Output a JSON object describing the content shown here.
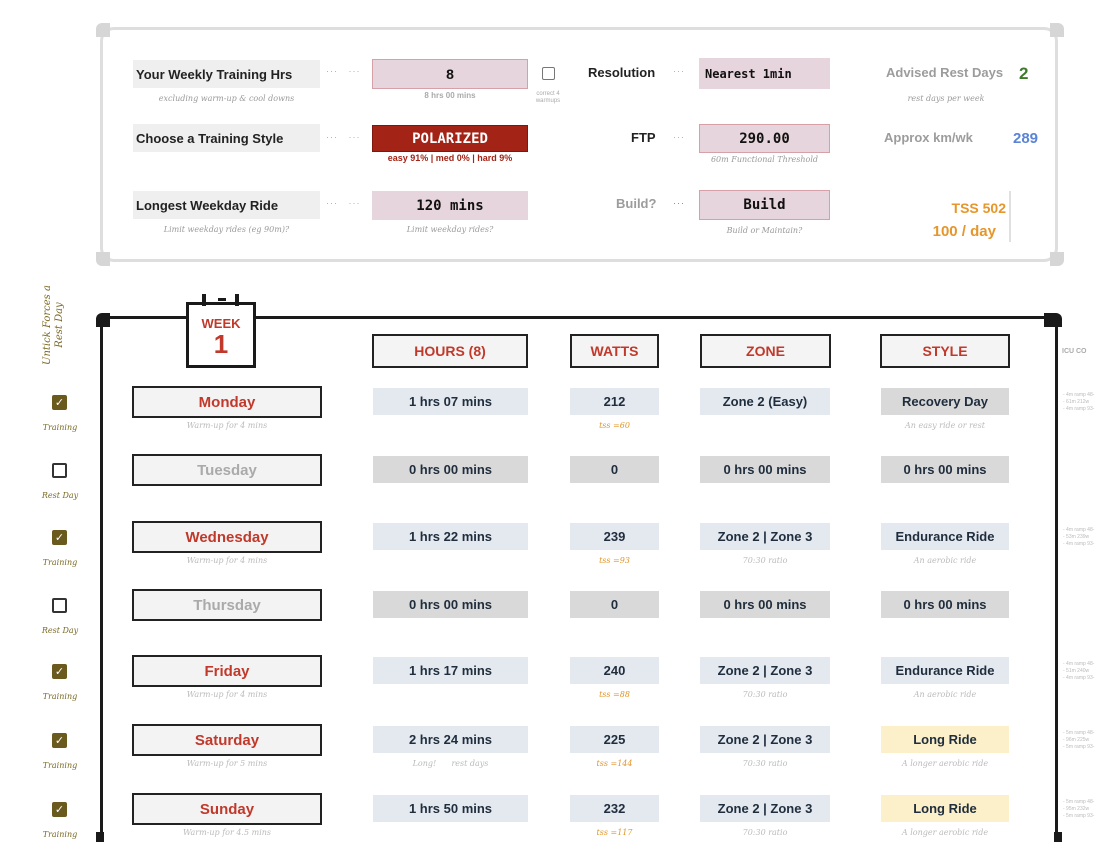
{
  "settings": {
    "weekly_hours_label": "Your Weekly Training Hrs",
    "weekly_hours_sub": "excluding warm-up & cool downs",
    "weekly_hours_value": "8",
    "weekly_hours_caption": "8 hrs 00 mins",
    "warmups_label": "correct 4 warmups",
    "training_style_label": "Choose a Training Style",
    "training_style_value": "POLARIZED",
    "training_style_caption": "easy 91% | med 0% | hard 9%",
    "longest_ride_label": "Longest Weekday Ride",
    "longest_ride_sub": "Limit weekday rides (eg 90m)?",
    "longest_ride_value": "120 mins",
    "longest_ride_caption": "Limit weekday rides?",
    "resolution_label": "Resolution",
    "resolution_value": "Nearest 1min",
    "ftp_label": "FTP",
    "ftp_value": "290.00",
    "ftp_caption": "60m Functional Threshold",
    "build_label": "Build?",
    "build_value": "Build",
    "build_caption": "Build or Maintain?",
    "rest_days_label": "Advised Rest Days",
    "rest_days_value": "2",
    "rest_days_caption": "rest days per week",
    "km_label": "Approx km/wk",
    "km_value": "289",
    "tss_value": "TSS 502",
    "tss_per_day": "100 / day"
  },
  "side_label": "Untick Forces a Rest Day",
  "week": {
    "word": "WEEK",
    "number": "1",
    "headers": {
      "hours": "HOURS (8)",
      "watts": "WATTS",
      "zone": "ZONE",
      "style": "STYLE",
      "icu": "ICU CO"
    }
  },
  "days": [
    {
      "name": "Monday",
      "checked": true,
      "check_label": "Training",
      "warmup": "Warm-up for 4 mins",
      "hours": "1 hrs 07 mins",
      "hours_note": "",
      "watts": "212",
      "tss": "tss =60",
      "zone": "Zone 2 (Easy)",
      "zone_note": "",
      "style": "Recovery Day",
      "style_note": "An easy ride or rest",
      "icu": [
        "- 4m ramp 48-",
        "- 61m 212w",
        "- 4m ramp 93-"
      ]
    },
    {
      "name": "Tuesday",
      "checked": false,
      "check_label": "Rest Day",
      "warmup": "",
      "hours": "0 hrs 00 mins",
      "hours_note": "",
      "watts": "0",
      "tss": "",
      "zone": "0 hrs 00 mins",
      "zone_note": "",
      "style": "0 hrs 00 mins",
      "style_note": "",
      "icu": []
    },
    {
      "name": "Wednesday",
      "checked": true,
      "check_label": "Training",
      "warmup": "Warm-up for 4 mins",
      "hours": "1 hrs 22 mins",
      "hours_note": "",
      "watts": "239",
      "tss": "tss =93",
      "zone": "Zone 2 | Zone 3",
      "zone_note": "70:30 ratio",
      "style": "Endurance Ride",
      "style_note": "An aerobic ride",
      "icu": [
        "- 4m ramp 48-",
        "- 53m 239w",
        "- 4m ramp 93-"
      ]
    },
    {
      "name": "Thursday",
      "checked": false,
      "check_label": "Rest Day",
      "warmup": "",
      "hours": "0 hrs 00 mins",
      "hours_note": "",
      "watts": "0",
      "tss": "",
      "zone": "0 hrs 00 mins",
      "zone_note": "",
      "style": "0 hrs 00 mins",
      "style_note": "",
      "icu": []
    },
    {
      "name": "Friday",
      "checked": true,
      "check_label": "Training",
      "warmup": "Warm-up for 4 mins",
      "hours": "1 hrs 17 mins",
      "hours_note": "",
      "watts": "240",
      "tss": "tss =88",
      "zone": "Zone 2 | Zone 3",
      "zone_note": "70:30 ratio",
      "style": "Endurance Ride",
      "style_note": "An aerobic ride",
      "icu": [
        "- 4m ramp 48-",
        "- 51m 240w",
        "- 4m ramp 93-"
      ]
    },
    {
      "name": "Saturday",
      "checked": true,
      "check_label": "Training",
      "warmup": "Warm-up for 5 mins",
      "hours": "2 hrs 24 mins",
      "hours_note": "Long!      rest days",
      "watts": "225",
      "tss": "tss =144",
      "zone": "Zone 2 | Zone 3",
      "zone_note": "70:30 ratio",
      "style": "Long Ride",
      "style_note": "A longer aerobic ride",
      "icu": [
        "- 5m ramp 48-",
        "- 96m 225w",
        "- 5m ramp 93-"
      ]
    },
    {
      "name": "Sunday",
      "checked": true,
      "check_label": "Training",
      "warmup": "Warm-up for 4.5 mins",
      "hours": "1 hrs 50 mins",
      "hours_note": "",
      "watts": "232",
      "tss": "tss =117",
      "zone": "Zone 2 | Zone 3",
      "zone_note": "70:30 ratio",
      "style": "Long Ride",
      "style_note": "A longer aerobic ride",
      "icu": [
        "- 5m ramp 48-",
        "- 95m 232w",
        "- 5m ramp 93-"
      ]
    }
  ],
  "colors": {
    "accent_red": "#c0392b",
    "dark_red": "#a32416",
    "pink": "#e6d5dc",
    "blue_cell": "#e4e9f0",
    "gray_cell": "#d9d9d9",
    "yellow_cell": "#fbf0c9",
    "green": "#3f7a2b",
    "blue_text": "#5b84d6",
    "orange": "#e6962a"
  }
}
